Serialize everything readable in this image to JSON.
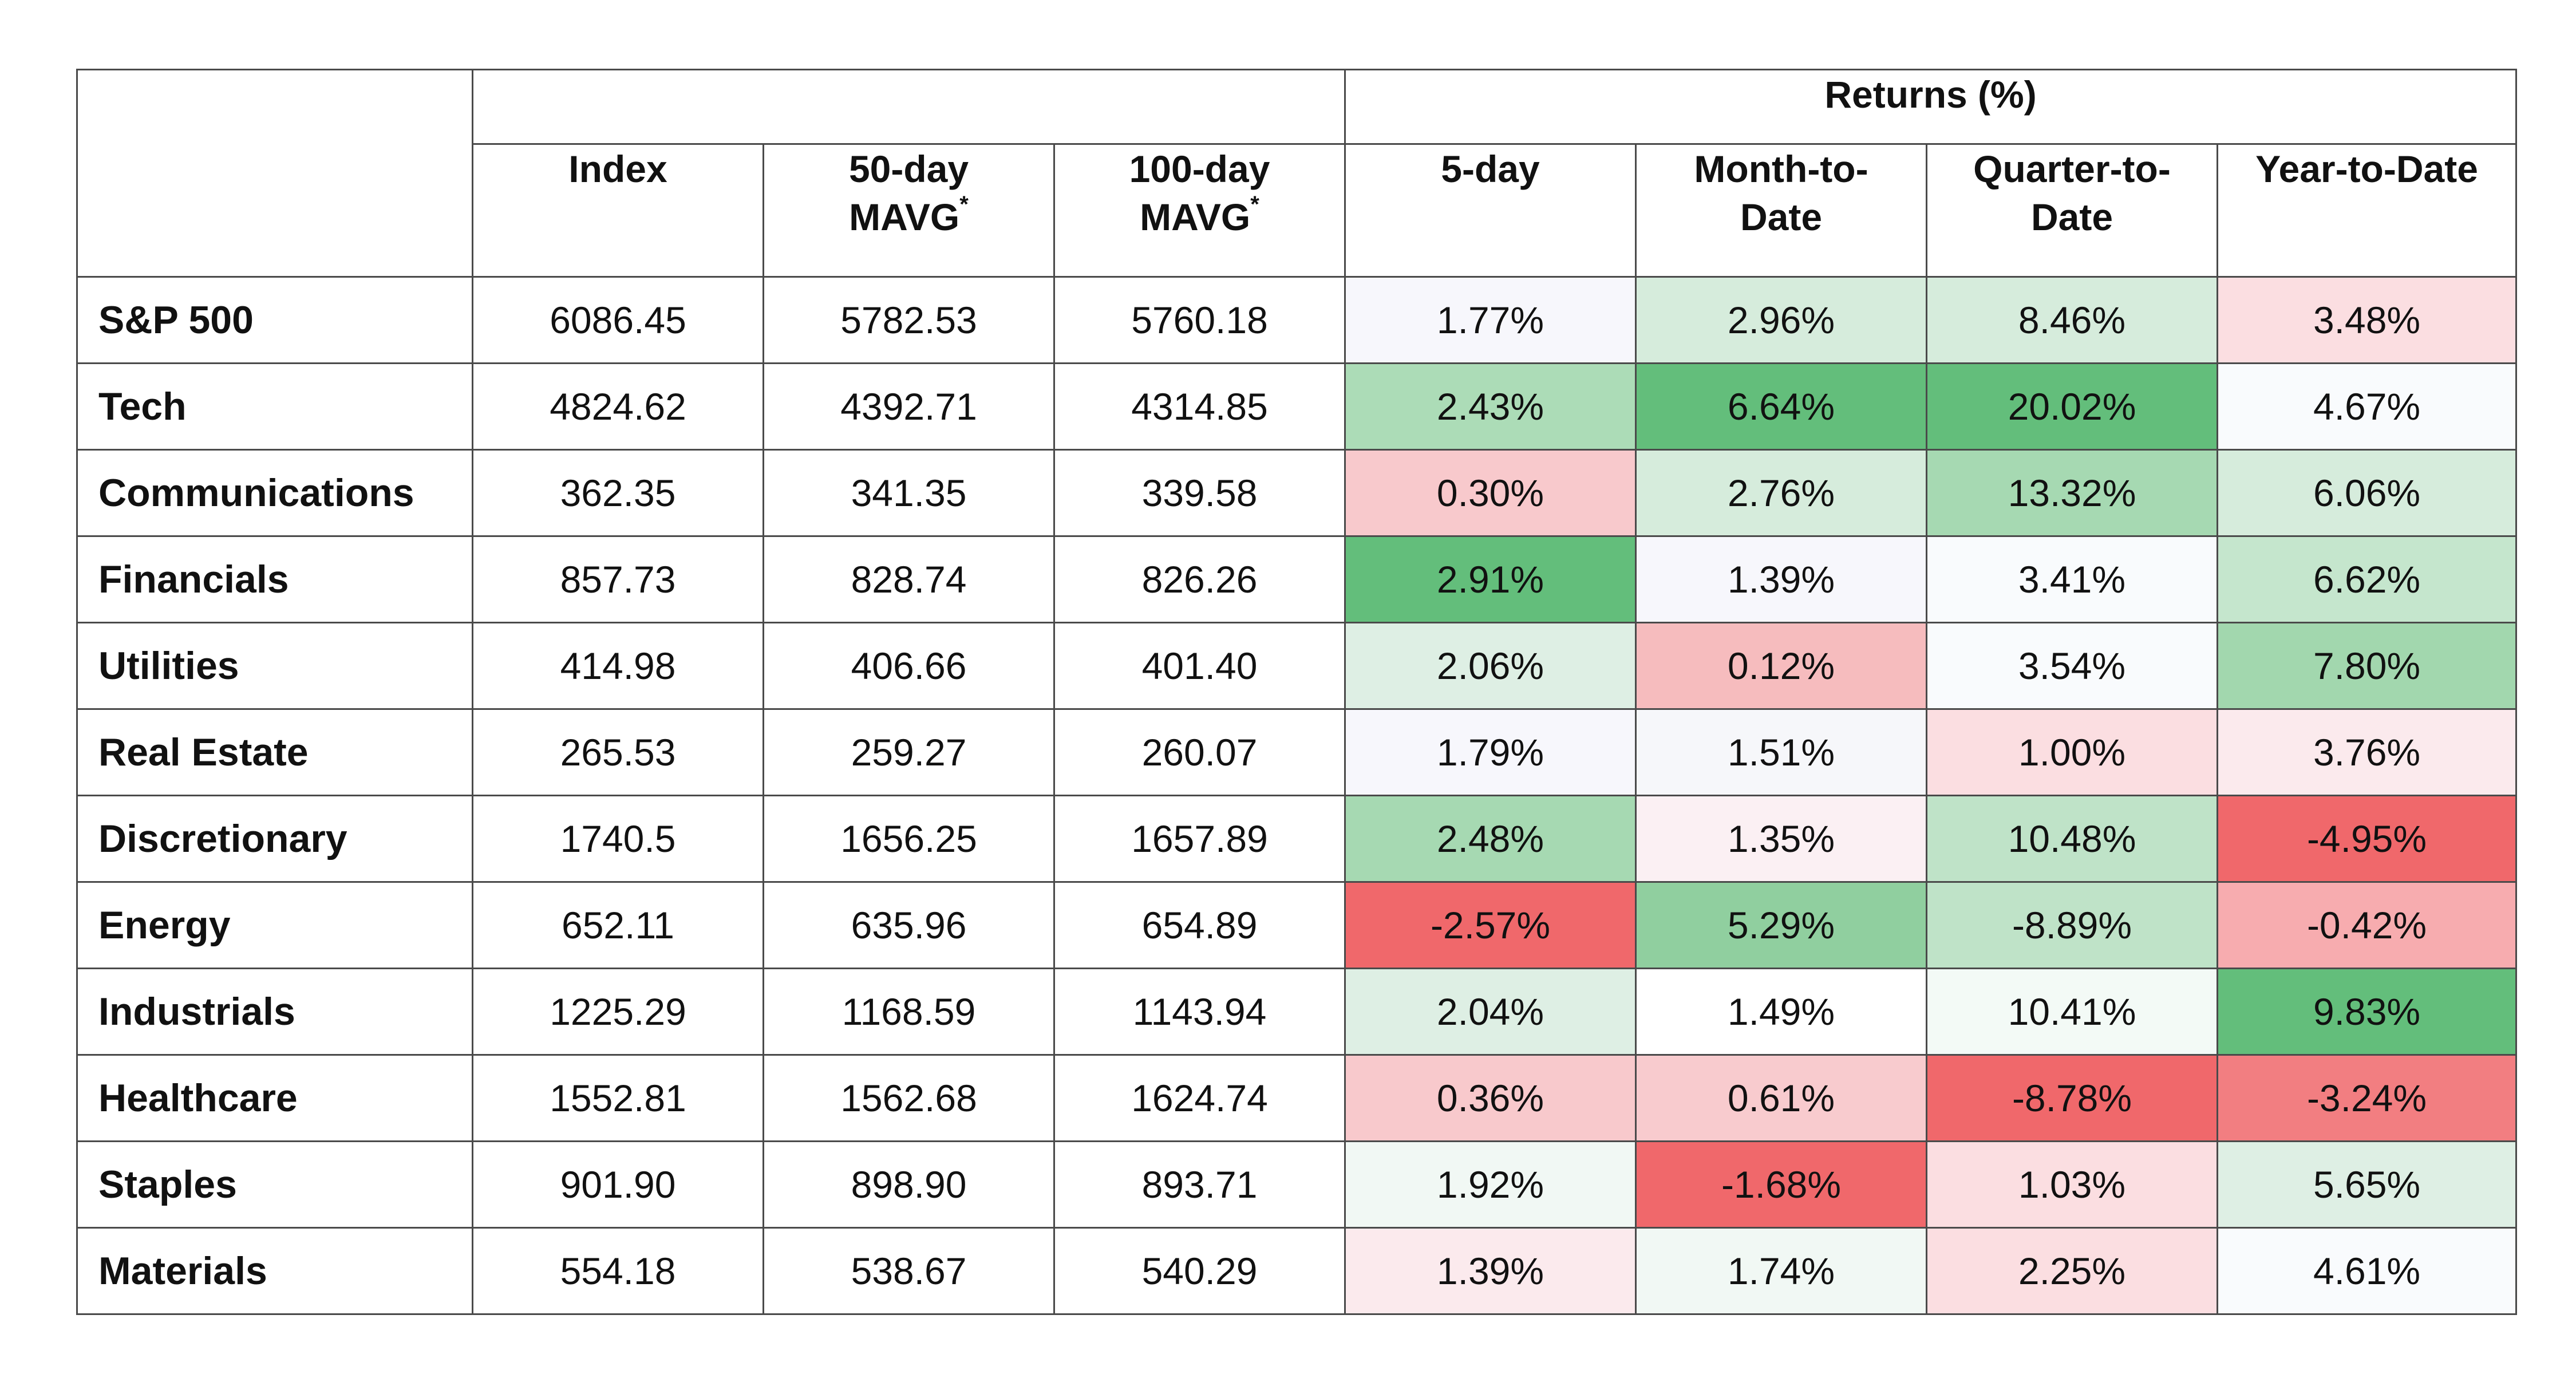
{
  "header": {
    "group_label": "Returns (%)",
    "columns": [
      {
        "key": "index",
        "lines": [
          "Index"
        ],
        "star": false
      },
      {
        "key": "ma50",
        "lines": [
          "50-day",
          "MAVG"
        ],
        "star": true
      },
      {
        "key": "ma100",
        "lines": [
          "100-day",
          "MAVG"
        ],
        "star": true
      },
      {
        "key": "r5d",
        "lines": [
          "5-day"
        ],
        "star": false
      },
      {
        "key": "mtd",
        "lines": [
          "Month-to-",
          "Date"
        ],
        "star": false
      },
      {
        "key": "qtd",
        "lines": [
          "Quarter-to-",
          "Date"
        ],
        "star": false
      },
      {
        "key": "ytd",
        "lines": [
          "Year-to-Date"
        ],
        "star": false
      }
    ],
    "footnote_mark": "*"
  },
  "heat_colors": {
    "strong_green": "#63be7b",
    "white": "#fcfcff",
    "strong_red": "#f0686b"
  },
  "chart_data": {
    "type": "table",
    "row_header": "",
    "columns": [
      "Index",
      "50-day MAVG*",
      "100-day MAVG*",
      "5-day",
      "Month-to-Date",
      "Quarter-to-Date",
      "Year-to-Date"
    ],
    "column_group": {
      "label": "Returns (%)",
      "columns": [
        "5-day",
        "Month-to-Date",
        "Quarter-to-Date",
        "Year-to-Date"
      ]
    },
    "rows": [
      {
        "sector": "S&P 500",
        "index": "6086.45",
        "ma50": "5782.53",
        "ma100": "5760.18",
        "r5d": "1.77%",
        "mtd": "2.96%",
        "qtd": "8.46%",
        "ytd": "3.48%"
      },
      {
        "sector": "Tech",
        "index": "4824.62",
        "ma50": "4392.71",
        "ma100": "4314.85",
        "r5d": "2.43%",
        "mtd": "6.64%",
        "qtd": "20.02%",
        "ytd": "4.67%"
      },
      {
        "sector": "Communications",
        "index": "362.35",
        "ma50": "341.35",
        "ma100": "339.58",
        "r5d": "0.30%",
        "mtd": "2.76%",
        "qtd": "13.32%",
        "ytd": "6.06%"
      },
      {
        "sector": "Financials",
        "index": "857.73",
        "ma50": "828.74",
        "ma100": "826.26",
        "r5d": "2.91%",
        "mtd": "1.39%",
        "qtd": "3.41%",
        "ytd": "6.62%"
      },
      {
        "sector": "Utilities",
        "index": "414.98",
        "ma50": "406.66",
        "ma100": "401.40",
        "r5d": "2.06%",
        "mtd": "0.12%",
        "qtd": "3.54%",
        "ytd": "7.80%"
      },
      {
        "sector": "Real Estate",
        "index": "265.53",
        "ma50": "259.27",
        "ma100": "260.07",
        "r5d": "1.79%",
        "mtd": "1.51%",
        "qtd": "1.00%",
        "ytd": "3.76%"
      },
      {
        "sector": "Discretionary",
        "index": "1740.5",
        "ma50": "1656.25",
        "ma100": "1657.89",
        "r5d": "2.48%",
        "mtd": "1.35%",
        "qtd": "10.48%",
        "ytd": "-4.95%"
      },
      {
        "sector": "Energy",
        "index": "652.11",
        "ma50": "635.96",
        "ma100": "654.89",
        "r5d": "-2.57%",
        "mtd": "5.29%",
        "qtd": "-8.89%",
        "ytd": "-0.42%"
      },
      {
        "sector": "Industrials",
        "index": "1225.29",
        "ma50": "1168.59",
        "ma100": "1143.94",
        "r5d": "2.04%",
        "mtd": "1.49%",
        "qtd": "10.41%",
        "ytd": "9.83%"
      },
      {
        "sector": "Healthcare",
        "index": "1552.81",
        "ma50": "1562.68",
        "ma100": "1624.74",
        "r5d": "0.36%",
        "mtd": "0.61%",
        "qtd": "-8.78%",
        "ytd": "-3.24%"
      },
      {
        "sector": "Staples",
        "index": "901.90",
        "ma50": "898.90",
        "ma100": "893.71",
        "r5d": "1.92%",
        "mtd": "-1.68%",
        "qtd": "1.03%",
        "ytd": "5.65%"
      },
      {
        "sector": "Materials",
        "index": "554.18",
        "ma50": "538.67",
        "ma100": "540.29",
        "r5d": "1.39%",
        "mtd": "1.74%",
        "qtd": "2.25%",
        "ytd": "4.61%"
      }
    ],
    "cell_colors": {
      "r5d": [
        "#f7f7fc",
        "#acdcb7",
        "#f8c9cc",
        "#63be7b",
        "#deefe4",
        "#f7f7fc",
        "#a6d9b2",
        "#f0686b",
        "#deefe4",
        "#f8c9cc",
        "#f1f8f4",
        "#fbeaed"
      ],
      "mtd": [
        "#d6ecdc",
        "#63be7b",
        "#d6ecdc",
        "#f7f7fc",
        "#f6bcbe",
        "#f6f7fa",
        "#fbf0f3",
        "#90cf9f",
        "#ffffff",
        "#f8cbce",
        "#f0686b",
        "#f1f8f4"
      ],
      "qtd": [
        "#d6ecdc",
        "#63be7b",
        "#a6d9b2",
        "#f9fbfd",
        "#f9fbfd",
        "#fbdee1",
        "#bfe3c8",
        "#bfe3c8",
        "#f3faf6",
        "#f0686b",
        "#fbdee1",
        "#fbdee1"
      ],
      "ytd": [
        "#fbdee1",
        "#f9fbfd",
        "#d6ecdc",
        "#c5e6cd",
        "#a2d7ae",
        "#fbeaed",
        "#f0686b",
        "#f7acaf",
        "#63be7b",
        "#f27e81",
        "#deefe4",
        "#f9fbfd"
      ]
    }
  }
}
